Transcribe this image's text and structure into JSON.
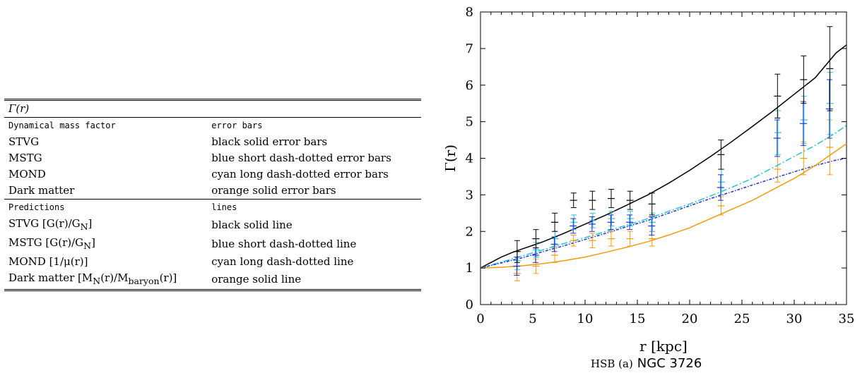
{
  "table": {
    "title": "Γ(r)",
    "header1": {
      "left": "Dynamical mass factor",
      "right": "error bars"
    },
    "rows1": [
      {
        "left": "STVG",
        "right": "black solid error bars"
      },
      {
        "left": "MSTG",
        "right": "blue short dash-dotted error bars"
      },
      {
        "left": "MOND",
        "right": "cyan long dash-dotted error bars"
      },
      {
        "left": "Dark matter",
        "right": "orange solid error bars"
      }
    ],
    "header2": {
      "left": "Predictions",
      "right": "lines"
    },
    "rows2": [
      {
        "left": "STVG [G(r)/G",
        "sub": "N",
        "tail": "]",
        "right": "black solid line"
      },
      {
        "left": "MSTG [G(r)/G",
        "sub": "N",
        "tail": "]",
        "right": "blue short dash-dotted line"
      },
      {
        "left": "MOND [1/μ(r)]",
        "sub": "",
        "tail": "",
        "right": "cyan long dash-dotted line"
      },
      {
        "left": "Dark matter [M",
        "sub": "N",
        "mid": "(r)/M",
        "sub2": "baryon",
        "tail": "(r)]",
        "right": "orange solid line"
      }
    ]
  },
  "caption": {
    "prefix": "HSB (a)",
    "name": "NGC 3726"
  },
  "colors": {
    "stvg": "#000000",
    "mstg": "#1f2fd8",
    "mond": "#22c4d9",
    "dark": "#f59a0a"
  },
  "chart_data": {
    "type": "scatter",
    "xlabel": "r [kpc]",
    "ylabel": "Γ(r)",
    "xlim": [
      0,
      35
    ],
    "ylim": [
      0,
      8
    ],
    "xticks": [
      "0",
      "5",
      "10",
      "15",
      "20",
      "25",
      "30",
      "35"
    ],
    "yticks": [
      "0",
      "1",
      "2",
      "3",
      "4",
      "5",
      "6",
      "7",
      "8"
    ],
    "x": [
      3.5,
      5.3,
      7.1,
      8.9,
      10.7,
      12.5,
      14.3,
      16.4,
      23.0,
      28.4,
      30.9,
      33.4
    ],
    "error_series": [
      {
        "key": "stvg",
        "y": [
          1.45,
          1.8,
          2.25,
          2.85,
          2.85,
          2.9,
          2.85,
          2.75,
          4.1,
          5.7,
          6.15,
          6.45
        ],
        "err": [
          0.3,
          0.25,
          0.25,
          0.2,
          0.25,
          0.25,
          0.25,
          0.3,
          0.4,
          0.6,
          0.65,
          1.15
        ]
      },
      {
        "key": "mstg",
        "y": [
          1.05,
          1.35,
          1.65,
          2.15,
          2.2,
          2.25,
          2.25,
          2.15,
          3.2,
          4.55,
          4.95,
          5.35
        ],
        "err": [
          0.25,
          0.2,
          0.2,
          0.2,
          0.2,
          0.2,
          0.2,
          0.25,
          0.35,
          0.5,
          0.6,
          0.8
        ]
      },
      {
        "key": "mond",
        "y": [
          1.2,
          1.5,
          1.8,
          2.25,
          2.3,
          2.35,
          2.35,
          2.25,
          3.35,
          4.7,
          5.05,
          5.5
        ],
        "err": [
          0.25,
          0.2,
          0.2,
          0.2,
          0.2,
          0.2,
          0.2,
          0.25,
          0.35,
          0.6,
          0.65,
          0.85
        ]
      },
      {
        "key": "dark",
        "y": [
          0.85,
          1.05,
          1.35,
          1.75,
          1.75,
          1.8,
          1.8,
          1.8,
          2.7,
          3.7,
          4.0,
          4.3
        ],
        "err": [
          0.2,
          0.2,
          0.2,
          0.15,
          0.2,
          0.2,
          0.2,
          0.2,
          0.25,
          0.35,
          0.45,
          0.75
        ]
      }
    ],
    "lines": [
      {
        "key": "stvg",
        "dash": "solid",
        "x": [
          0,
          1,
          2,
          3,
          4,
          5,
          6,
          8,
          10,
          12,
          14,
          16,
          18,
          20,
          22,
          24,
          26,
          28,
          30,
          32,
          34,
          35
        ],
        "y": [
          1.0,
          1.15,
          1.3,
          1.42,
          1.52,
          1.62,
          1.72,
          1.95,
          2.2,
          2.45,
          2.72,
          3.0,
          3.32,
          3.67,
          4.05,
          4.45,
          4.87,
          5.3,
          5.75,
          6.2,
          6.88,
          7.1
        ]
      },
      {
        "key": "mond",
        "dash": "longdashdot",
        "x": [
          0,
          2,
          4,
          6,
          8,
          10,
          12,
          14,
          16,
          18,
          20,
          22,
          24,
          26,
          28,
          30,
          32,
          34,
          35
        ],
        "y": [
          1.0,
          1.16,
          1.33,
          1.5,
          1.67,
          1.83,
          2.0,
          2.17,
          2.35,
          2.55,
          2.75,
          2.97,
          3.2,
          3.45,
          3.75,
          4.05,
          4.35,
          4.7,
          4.9
        ]
      },
      {
        "key": "mstg",
        "dash": "shortdashdot",
        "x": [
          0,
          2,
          4,
          6,
          8,
          10,
          12,
          14,
          16,
          18,
          20,
          22,
          24,
          26,
          28,
          30,
          32,
          34,
          35
        ],
        "y": [
          1.0,
          1.14,
          1.28,
          1.45,
          1.61,
          1.78,
          1.95,
          2.13,
          2.3,
          2.5,
          2.7,
          2.9,
          3.08,
          3.27,
          3.45,
          3.63,
          3.8,
          3.95,
          4.0
        ]
      },
      {
        "key": "dark",
        "dash": "solid",
        "x": [
          0,
          2,
          4,
          6,
          8,
          10,
          12,
          14,
          16,
          18,
          20,
          22,
          24,
          26,
          28,
          30,
          32,
          34,
          35
        ],
        "y": [
          1.0,
          1.02,
          1.06,
          1.12,
          1.2,
          1.3,
          1.43,
          1.57,
          1.72,
          1.9,
          2.1,
          2.35,
          2.6,
          2.85,
          3.15,
          3.45,
          3.8,
          4.2,
          4.4
        ]
      }
    ]
  }
}
